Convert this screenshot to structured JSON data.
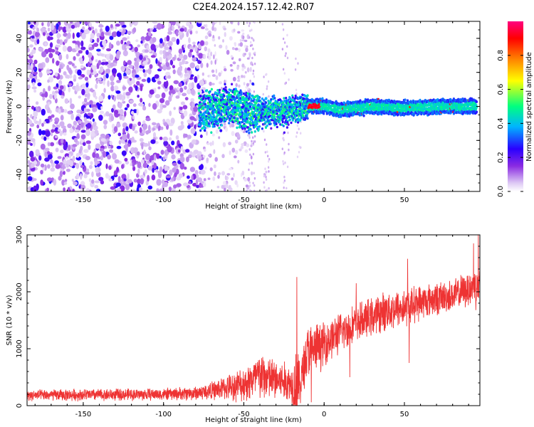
{
  "title": "C2E4.2024.157.12.42.R07",
  "chart_data": [
    {
      "type": "heatmap",
      "xlabel": "Height of straight line (km)",
      "ylabel": "Frequency (Hz)",
      "xlim": [
        -185,
        97
      ],
      "ylim": [
        -50,
        50
      ],
      "xticks": [
        -150,
        -100,
        -50,
        0,
        50
      ],
      "yticks": [
        -40,
        -20,
        0,
        20,
        40
      ],
      "colorbar": {
        "label": "Normalized spectral amplitude",
        "range": [
          0.0,
          1.0
        ],
        "ticks": [
          0.0,
          0.2,
          0.4,
          0.6,
          0.8
        ],
        "colors": [
          "#ffffff",
          "#ddc8f4",
          "#8a2be2",
          "#2a00ff",
          "#00b4ff",
          "#00ff80",
          "#ffff00",
          "#ff8000",
          "#ff0000",
          "#ff0080"
        ]
      },
      "noise_region": {
        "x": [
          -185,
          -75
        ],
        "y": [
          -50,
          50
        ],
        "amplitude": [
          0.05,
          0.3
        ]
      },
      "sparse_region": {
        "x": [
          -75,
          -45
        ],
        "y": [
          -50,
          50
        ],
        "amplitude": [
          0.02,
          0.1
        ]
      },
      "signal_track": [
        {
          "x": -78,
          "y": -3
        },
        {
          "x": -70,
          "y": -2
        },
        {
          "x": -65,
          "y": -1
        },
        {
          "x": -60,
          "y": 1
        },
        {
          "x": -55,
          "y": 0
        },
        {
          "x": -50,
          "y": -2
        },
        {
          "x": -45,
          "y": -3
        },
        {
          "x": -40,
          "y": -4
        },
        {
          "x": -35,
          "y": -4
        },
        {
          "x": -30,
          "y": -3
        },
        {
          "x": -25,
          "y": -3
        },
        {
          "x": -20,
          "y": -2
        },
        {
          "x": -15,
          "y": -1
        },
        {
          "x": -10,
          "y": 0
        },
        {
          "x": 0,
          "y": 0
        },
        {
          "x": 5,
          "y": -1
        },
        {
          "x": 10,
          "y": -2
        },
        {
          "x": 20,
          "y": -1
        },
        {
          "x": 30,
          "y": 0
        },
        {
          "x": 50,
          "y": -1
        },
        {
          "x": 70,
          "y": 0
        },
        {
          "x": 95,
          "y": 0
        }
      ]
    },
    {
      "type": "line",
      "xlabel": "Height of straight line (km)",
      "ylabel": "SNR (10 * v/v)",
      "xlim": [
        -185,
        97
      ],
      "ylim": [
        0,
        3000
      ],
      "xticks": [
        -150,
        -100,
        -50,
        0,
        50
      ],
      "yticks": [
        0,
        1000,
        2000,
        3000
      ],
      "color": "#ee3333",
      "envelope": {
        "x": [
          -185,
          -150,
          -100,
          -80,
          -70,
          -60,
          -50,
          -45,
          -40,
          -35,
          -30,
          -25,
          -20,
          -17,
          -15,
          -12,
          -10,
          -5,
          0,
          10,
          20,
          30,
          40,
          50,
          60,
          70,
          80,
          90,
          95
        ],
        "mean": [
          180,
          190,
          200,
          220,
          260,
          320,
          380,
          450,
          520,
          480,
          450,
          420,
          380,
          400,
          350,
          800,
          950,
          1000,
          1100,
          1280,
          1450,
          1560,
          1680,
          1720,
          1820,
          1880,
          1930,
          2050,
          2100
        ],
        "spread": [
          110,
          120,
          120,
          140,
          180,
          250,
          350,
          420,
          500,
          450,
          420,
          400,
          380,
          900,
          400,
          550,
          550,
          500,
          450,
          400,
          380,
          380,
          400,
          380,
          350,
          330,
          320,
          350,
          450
        ]
      },
      "spikes": [
        {
          "x": -17,
          "y": 2260
        },
        {
          "x": 20,
          "y": 2150
        },
        {
          "x": 52,
          "y": 2580
        },
        {
          "x": 93,
          "y": 2850
        },
        {
          "x": 96,
          "y": 3000
        },
        {
          "x": 53,
          "y": 750
        },
        {
          "x": 16,
          "y": 500
        },
        {
          "x": -8,
          "y": 60
        }
      ]
    }
  ]
}
